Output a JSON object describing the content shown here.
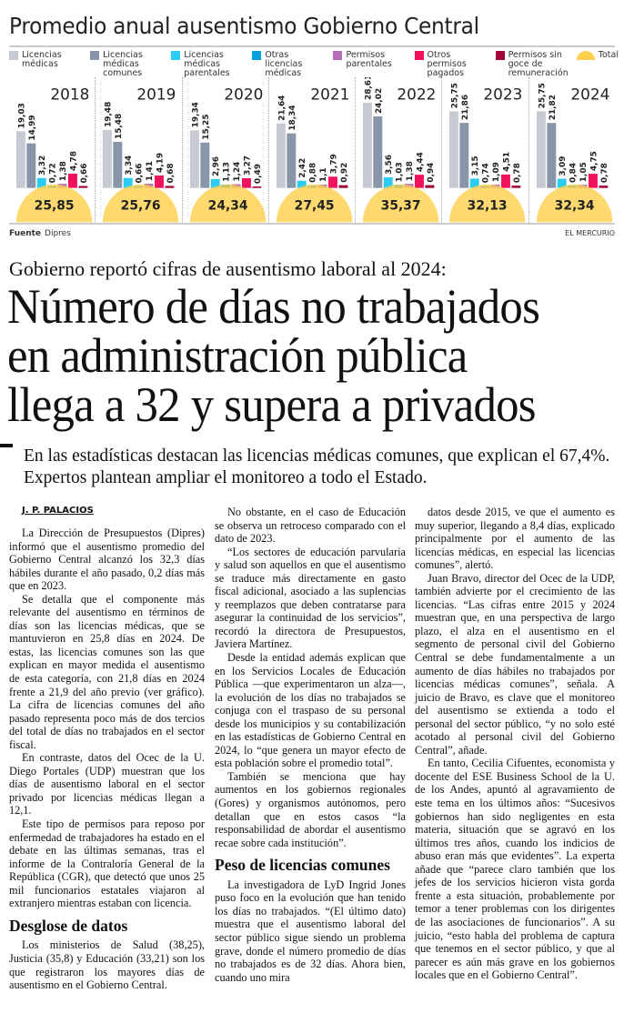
{
  "chart": {
    "title": "Promedio anual ausentismo Gobierno Central",
    "source_label": "Fuente",
    "source": "Dipres",
    "credit": "EL MERCURIO",
    "legend": [
      {
        "label": "Licencias médicas",
        "color": "#c6cad3"
      },
      {
        "label": "Licencias médicas comunes",
        "color": "#8995a8"
      },
      {
        "label": "Licencias médicas parentales",
        "color": "#2ccbf2"
      },
      {
        "label": "Otras licencias médicas",
        "color": "#00a0dc"
      },
      {
        "label": "Permisos parentales",
        "color": "#b56fb8"
      },
      {
        "label": "Otros permisos pagados",
        "color": "#f2125c"
      },
      {
        "label": "Permisos sin goce de remuneración",
        "color": "#a2003c"
      },
      {
        "label": "Total",
        "color": "#fcd04c"
      }
    ]
  },
  "chart_data": {
    "type": "bar",
    "title": "Promedio anual ausentismo Gobierno Central",
    "categories": [
      "2018",
      "2019",
      "2020",
      "2021",
      "2022",
      "2023",
      "2024"
    ],
    "series": [
      {
        "name": "Licencias médicas",
        "values": [
          19.03,
          19.48,
          19.34,
          21.64,
          28.61,
          25.75,
          25.75
        ]
      },
      {
        "name": "Licencias médicas comunes",
        "values": [
          14.99,
          15.48,
          15.25,
          18.34,
          24.02,
          21.86,
          21.82
        ]
      },
      {
        "name": "Licencias médicas parentales",
        "values": [
          3.32,
          3.34,
          2.96,
          2.42,
          3.56,
          3.15,
          3.09
        ]
      },
      {
        "name": "Otras licencias médicas",
        "values": [
          0.72,
          0.66,
          1.13,
          0.88,
          1.03,
          0.74,
          0.84
        ]
      },
      {
        "name": "Permisos parentales",
        "values": [
          1.38,
          1.41,
          1.24,
          1.1,
          1.38,
          1.09,
          1.05
        ]
      },
      {
        "name": "Otros permisos pagados",
        "values": [
          4.78,
          4.19,
          3.27,
          3.79,
          4.44,
          4.51,
          4.75
        ]
      },
      {
        "name": "Permisos sin goce de remuneración",
        "values": [
          0.66,
          0.68,
          0.49,
          0.92,
          0.94,
          0.78,
          0.78
        ]
      }
    ],
    "totals": {
      "name": "Total",
      "values": [
        25.85,
        25.76,
        24.34,
        27.45,
        35.37,
        32.13,
        32.34
      ]
    },
    "value_labels": [
      [
        "19,03",
        "14,99",
        "3,32",
        "0,72",
        "1,38",
        "4,78",
        "0,66"
      ],
      [
        "19,48",
        "15,48",
        "3,34",
        "0,66",
        "1,41",
        "4,19",
        "0,68"
      ],
      [
        "19,34",
        "15,25",
        "2,96",
        "1,13",
        "1,24",
        "3,27",
        "0,49"
      ],
      [
        "21,64",
        "18,34",
        "2,42",
        "0,88",
        "1,1",
        "3,79",
        "0,92"
      ],
      [
        "28,61",
        "24,02",
        "3,56",
        "1,03",
        "1,38",
        "4,44",
        "0,94"
      ],
      [
        "25,75",
        "21,86",
        "3,15",
        "0,74",
        "1,09",
        "4,51",
        "0,78"
      ],
      [
        "25,75",
        "21,82",
        "3,09",
        "0,84",
        "1,05",
        "4,75",
        "0,78"
      ]
    ],
    "total_labels": [
      "25,85",
      "25,76",
      "24,34",
      "27,45",
      "35,37",
      "32,13",
      "32,34"
    ],
    "ylim": [
      0,
      30
    ],
    "grid": false,
    "legend_position": "top"
  },
  "article": {
    "kicker": "Gobierno reportó cifras de ausentismo laboral al 2024:",
    "headline": [
      "Número de días no trabajados",
      "en administración pública",
      "llega a 32 y supera a privados"
    ],
    "deck": "En las estadísticas destacan las licencias médicas comunes, que explican el 67,4%. Expertos plantean ampliar el monitoreo a todo el Estado.",
    "byline": "J. P. PALACIOS",
    "col1": [
      "La Dirección de Presupuestos (Dipres) informó que el ausentismo promedio del Gobierno Central alcanzó los 32,3 días hábiles durante el año pasado, 0,2 días más que en 2023.",
      "Se detalla que el componente más relevante del ausentismo en términos de días son las licencias médicas, que se mantuvieron en 25,8 días en 2024. De estas, las licencias comunes son las que explican en mayor medida el ausentismo de esta categoría, con 21,8 días en 2024 frente a 21,9 del año previo (ver gráfico). La cifra de licencias comunes del año pasado representa poco más de dos tercios del total de días no trabajados en el sector fiscal.",
      "En contraste, datos del Ocec de la U. Diego Portales (UDP) muestran que los días de ausentismo laboral en el sector privado por licencias médicas llegan a 12,1.",
      "Este tipo de permisos para reposo por enfermedad de trabajadores ha estado en el debate en las últimas semanas, tras el informe de la Contraloría General de la República (CGR), que detectó que unos 25 mil funcionarios estatales viajaron al extranjero mientras estaban con licencia."
    ],
    "subhead1": "Desglose de datos",
    "col1b": [
      "Los ministerios de Salud (38,25), Justicia (35,8) y Educación (33,21) son los que registraron los mayores días de ausentismo en el Gobierno Central."
    ],
    "col2": [
      "No obstante, en el caso de Educación se observa un retroceso comparado con el dato de 2023.",
      "“Los sectores de educación parvularia y salud son aquellos en que el ausentismo se traduce más directamente en gasto fiscal adicional, asociado a las suplencias y reemplazos que deben contratarse para asegurar la continuidad de los servicios”, recordó la directora de Presupuestos, Javiera Martínez.",
      "Desde la entidad además explican que en los Servicios Locales de Educación Pública —que experimentaron un alza—, la evolución de los días no trabajados se conjuga con el traspaso de su personal desde los municipios y su contabilización en las estadísticas de Gobierno Central en 2024, lo “que genera un mayor efecto de esta población sobre el promedio total”.",
      "También se menciona que hay aumentos en los gobiernos regionales (Gores) y organismos autónomos, pero detallan que en estos casos “la responsabilidad de abordar el ausentismo recae sobre cada institución”."
    ],
    "subhead2": "Peso de licencias comunes",
    "col2b": [
      "La investigadora de LyD Ingrid Jones puso foco en la evolución que han tenido los días no trabajados. “(El último dato) muestra que el ausentismo laboral del sector público sigue siendo un problema grave, donde el número promedio de días no trabajados es de 32 días. Ahora bien, cuando uno mira"
    ],
    "col3": [
      "datos desde 2015, ve que el aumento es muy superior, llegando a 8,4 días, explicado principalmente por el aumento de las licencias médicas, en especial las licencias comunes”, alertó.",
      "Juan Bravo, director del Ocec de la UDP, también advierte por el crecimiento de las licencias. “Las cifras entre 2015 y 2024 muestran que, en una perspectiva de largo plazo, el alza en el ausentismo en el segmento de personal civil del Gobierno Central se debe fundamentalmente a un aumento de días hábiles no trabajados por licencias médicas comunes”, señala. A juicio de Bravo, es clave que el monitoreo del ausentismo se extienda a todo el personal del sector público, “y no solo esté acotado al personal civil del Gobierno Central”, añade.",
      "En tanto, Cecilia Cifuentes, economista y docente del ESE Business School de la U. de los Andes, apuntó al agravamiento de este tema en los últimos años: “Sucesivos gobiernos han sido negligentes en esta materia, situación que se agravó en los últimos tres años, cuando los indicios de abuso eran más que evidentes”. La experta añade que “parece claro también que los jefes de los servicios hicieron vista gorda frente a esta situación, probablemente por temor a tener problemas con los dirigentes de las asociaciones de funcionarios”. A su juicio, “esto habla del problema de captura que tenemos en el sector público, y que al parecer es aún más grave en los gobiernos locales que en el Gobierno Central”."
    ]
  }
}
